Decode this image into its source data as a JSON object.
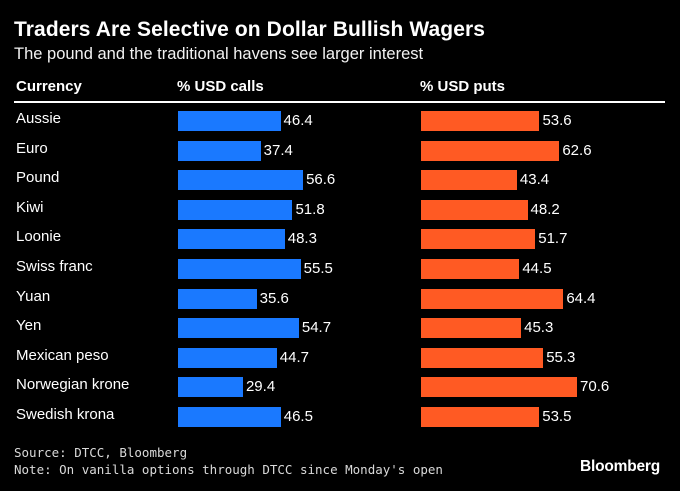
{
  "title": "Traders Are Selective on Dollar Bullish Wagers",
  "subtitle": "The pound and the traditional havens see larger interest",
  "headers": {
    "currency": "Currency",
    "calls": "% USD calls",
    "puts": "% USD puts"
  },
  "colors": {
    "calls": "#1a79ff",
    "puts": "#ff5a23",
    "background": "#000000"
  },
  "chart_data": {
    "type": "bar",
    "orientation": "horizontal",
    "categories": [
      "Aussie",
      "Euro",
      "Pound",
      "Kiwi",
      "Loonie",
      "Swiss franc",
      "Yuan",
      "Yen",
      "Mexican peso",
      "Norwegian krone",
      "Swedish krona"
    ],
    "series": [
      {
        "name": "% USD calls",
        "values": [
          46.4,
          37.4,
          56.6,
          51.8,
          48.3,
          55.5,
          35.6,
          54.7,
          44.7,
          29.4,
          46.5
        ]
      },
      {
        "name": "% USD puts",
        "values": [
          53.6,
          62.6,
          43.4,
          48.2,
          51.7,
          44.5,
          64.4,
          45.3,
          55.3,
          70.6,
          53.5
        ]
      }
    ]
  },
  "source": "Source: DTCC, Bloomberg",
  "note": "Note: On vanilla options through DTCC since Monday's open",
  "brand": "Bloomberg"
}
